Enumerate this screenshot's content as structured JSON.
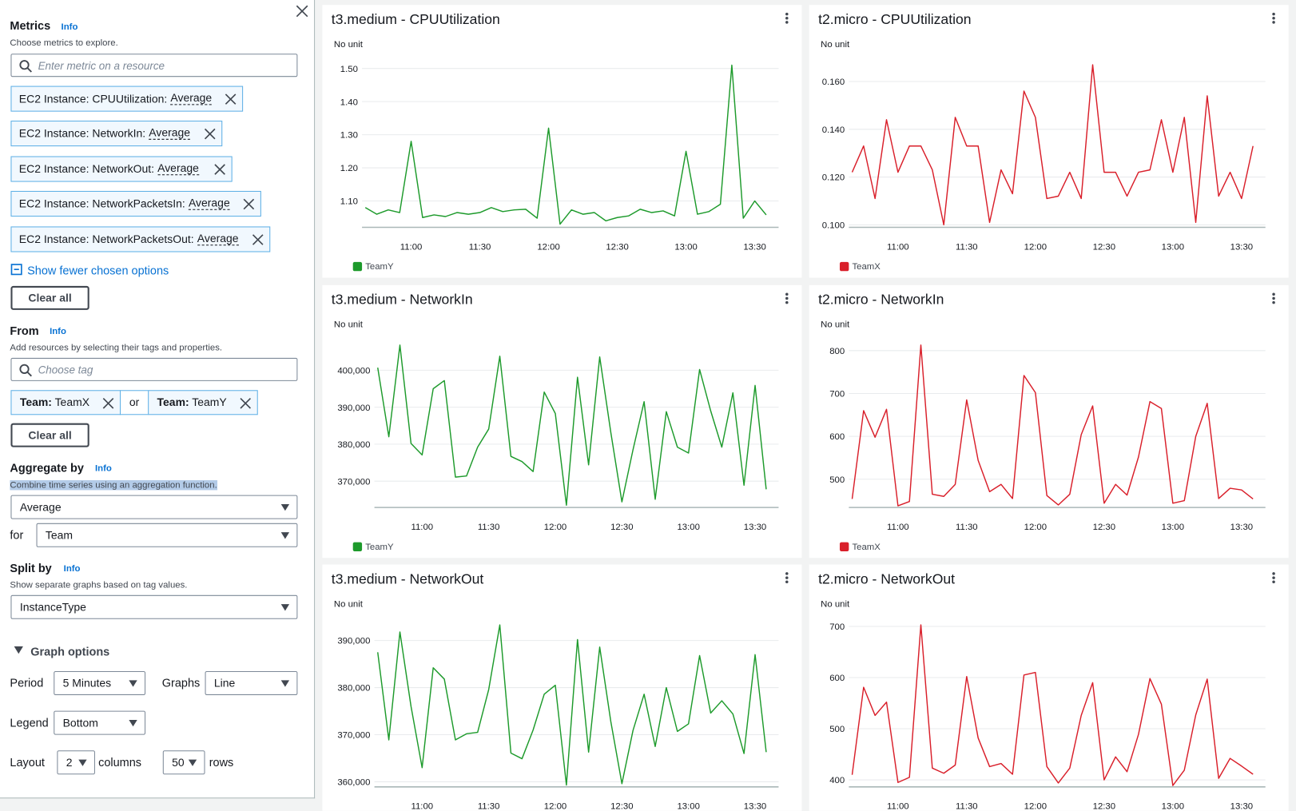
{
  "sidebar": {
    "metrics": {
      "title": "Metrics",
      "info": "Info",
      "description": "Choose metrics to explore.",
      "search_placeholder": "Enter metric on a resource",
      "chosen": [
        {
          "label": "EC2 Instance: CPUUtilization:",
          "stat": "Average"
        },
        {
          "label": "EC2 Instance: NetworkIn:",
          "stat": "Average"
        },
        {
          "label": "EC2 Instance: NetworkOut:",
          "stat": "Average"
        },
        {
          "label": "EC2 Instance: NetworkPacketsIn:",
          "stat": "Average"
        },
        {
          "label": "EC2 Instance: NetworkPacketsOut:",
          "stat": "Average"
        }
      ],
      "toggle": "Show fewer chosen options",
      "clear": "Clear all"
    },
    "from": {
      "title": "From",
      "info": "Info",
      "description": "Add resources by selecting their tags and properties.",
      "search_placeholder": "Choose tag",
      "tags": [
        {
          "key": "Team:",
          "value": "TeamX"
        },
        {
          "key": "Team:",
          "value": "TeamY"
        }
      ],
      "joiner": "or",
      "clear": "Clear all"
    },
    "aggregate": {
      "title": "Aggregate by",
      "info": "Info",
      "description": "Combine time series using an aggregation function.",
      "function": "Average",
      "for_label": "for",
      "for_value": "Team"
    },
    "split": {
      "title": "Split by",
      "info": "Info",
      "description": "Show separate graphs based on tag values.",
      "value": "InstanceType"
    },
    "graph_options": {
      "title": "Graph options",
      "period_label": "Period",
      "period": "5 Minutes",
      "graphs_label": "Graphs",
      "graphs": "Line",
      "legend_label": "Legend",
      "legend": "Bottom",
      "layout_label": "Layout",
      "columns": "2",
      "columns_label": "columns",
      "rows": "50",
      "rows_label": "rows"
    }
  },
  "chart_data": [
    {
      "type": "line",
      "title": "t3.medium - CPUUtilization",
      "unit": "No unit",
      "categories": [
        null,
        null,
        null,
        null,
        "11:00",
        null,
        null,
        null,
        null,
        null,
        "11:30",
        null,
        null,
        null,
        null,
        null,
        "12:00",
        null,
        null,
        null,
        null,
        null,
        "12:30",
        null,
        null,
        null,
        null,
        null,
        "13:00",
        null,
        null,
        null,
        null,
        null,
        "13:30",
        null
      ],
      "series": [
        {
          "name": "TeamY",
          "color": "#1d9a2b",
          "values": [
            1.08,
            1.06,
            1.073,
            1.065,
            1.28,
            1.05,
            1.058,
            1.053,
            1.065,
            1.06,
            1.065,
            1.08,
            1.068,
            1.073,
            1.075,
            1.048,
            1.32,
            1.03,
            1.073,
            1.06,
            1.065,
            1.04,
            1.05,
            1.055,
            1.075,
            1.065,
            1.07,
            1.055,
            1.25,
            1.06,
            1.068,
            1.09,
            1.51,
            1.048,
            1.1,
            1.058
          ]
        }
      ],
      "ylim": [
        1.023,
        1.542
      ],
      "yticks": [
        {
          "value": 1.1,
          "label": "1.10"
        },
        {
          "value": 1.2,
          "label": "1.20"
        },
        {
          "value": 1.3,
          "label": "1.30"
        },
        {
          "value": 1.4,
          "label": "1.40"
        },
        {
          "value": 1.5,
          "label": "1.50"
        }
      ],
      "grid": true
    },
    {
      "type": "line",
      "title": "t2.micro - CPUUtilization",
      "unit": "No unit",
      "categories": [
        null,
        null,
        null,
        null,
        "11:00",
        null,
        null,
        null,
        null,
        null,
        "11:30",
        null,
        null,
        null,
        null,
        null,
        "12:00",
        null,
        null,
        null,
        null,
        null,
        "12:30",
        null,
        null,
        null,
        null,
        null,
        "13:00",
        null,
        null,
        null,
        null,
        null,
        "13:30",
        null
      ],
      "series": [
        {
          "name": "TeamX",
          "color": "#d91f2a",
          "values": [
            0.122,
            0.133,
            0.111,
            0.144,
            0.122,
            0.133,
            0.133,
            0.123,
            0.1,
            0.145,
            0.133,
            0.133,
            0.101,
            0.123,
            0.113,
            0.156,
            0.145,
            0.111,
            0.112,
            0.122,
            0.111,
            0.167,
            0.122,
            0.122,
            0.112,
            0.122,
            0.123,
            0.144,
            0.122,
            0.145,
            0.101,
            0.154,
            0.112,
            0.122,
            0.111,
            0.133
          ]
        }
      ],
      "ylim": [
        0.0993,
        0.1713
      ],
      "yticks": [
        {
          "value": 0.1,
          "label": "0.100"
        },
        {
          "value": 0.12,
          "label": "0.120"
        },
        {
          "value": 0.14,
          "label": "0.140"
        },
        {
          "value": 0.16,
          "label": "0.160"
        }
      ],
      "grid": true
    },
    {
      "type": "line",
      "title": "t3.medium - NetworkIn",
      "unit": "No unit",
      "categories": [
        null,
        null,
        null,
        null,
        "11:00",
        null,
        null,
        null,
        null,
        null,
        "11:30",
        null,
        null,
        null,
        null,
        null,
        "12:00",
        null,
        null,
        null,
        null,
        null,
        "12:30",
        null,
        null,
        null,
        null,
        null,
        "13:00",
        null,
        null,
        null,
        null,
        null,
        "13:30",
        null
      ],
      "series": [
        {
          "name": "TeamY",
          "color": "#1d9a2b",
          "values": [
            400700,
            382000,
            406800,
            380200,
            377100,
            395000,
            397200,
            371100,
            371400,
            379200,
            384100,
            403800,
            376700,
            375300,
            372600,
            394100,
            388300,
            363500,
            398100,
            374400,
            403600,
            383200,
            364400,
            378500,
            391500,
            365100,
            388800,
            379200,
            377600,
            400200,
            389000,
            379200,
            393900,
            368900,
            395900,
            367800
          ]
        }
      ],
      "ylim": [
        363100,
        409600
      ],
      "yticks": [
        {
          "value": 370000,
          "label": "370,000"
        },
        {
          "value": 380000,
          "label": "380,000"
        },
        {
          "value": 390000,
          "label": "390,000"
        },
        {
          "value": 400000,
          "label": "400,000"
        }
      ],
      "grid": true
    },
    {
      "type": "line",
      "title": "t2.micro - NetworkIn",
      "unit": "No unit",
      "categories": [
        null,
        null,
        null,
        null,
        "11:00",
        null,
        null,
        null,
        null,
        null,
        "11:30",
        null,
        null,
        null,
        null,
        null,
        "12:00",
        null,
        null,
        null,
        null,
        null,
        "12:30",
        null,
        null,
        null,
        null,
        null,
        "13:00",
        null,
        null,
        null,
        null,
        null,
        "13:30",
        null
      ],
      "series": [
        {
          "name": "TeamX",
          "color": "#d91f2a",
          "values": [
            454,
            660,
            598,
            663,
            438,
            448,
            813,
            465,
            460,
            488,
            685,
            544,
            471,
            488,
            455,
            742,
            702,
            462,
            440,
            465,
            604,
            671,
            444,
            488,
            463,
            552,
            681,
            665,
            444,
            450,
            600,
            677,
            455,
            479,
            475,
            454
          ]
        }
      ],
      "ylim": [
        436,
        837
      ],
      "yticks": [
        500,
        600,
        700,
        800
      ],
      "grid": true
    },
    {
      "type": "line",
      "title": "t3.medium - NetworkOut",
      "unit": "No unit",
      "categories": [
        null,
        null,
        null,
        null,
        "11:00",
        null,
        null,
        null,
        null,
        null,
        "11:30",
        null,
        null,
        null,
        null,
        null,
        "12:00",
        null,
        null,
        null,
        null,
        null,
        "12:30",
        null,
        null,
        null,
        null,
        null,
        "13:00",
        null,
        null,
        null,
        null,
        null,
        "13:30",
        null
      ],
      "series": [
        {
          "color": "#1d9a2b",
          "values": [
            387500,
            368900,
            391800,
            376000,
            363000,
            384200,
            381800,
            368900,
            370200,
            370500,
            379600,
            393300,
            366100,
            364900,
            371000,
            378600,
            380500,
            359300,
            390200,
            366300,
            388600,
            372800,
            359600,
            370900,
            378600,
            367500,
            380000,
            370700,
            372300,
            386800,
            374600,
            377200,
            374400,
            366000,
            387000,
            366300
          ]
        }
      ],
      "ylim": [
        359100,
        395600
      ],
      "yticks": [
        {
          "value": 360000,
          "label": "360,000"
        },
        {
          "value": 370000,
          "label": "370,000"
        },
        {
          "value": 380000,
          "label": "380,000"
        },
        {
          "value": 390000,
          "label": "390,000"
        }
      ],
      "grid": true
    },
    {
      "type": "line",
      "title": "t2.micro - NetworkOut",
      "unit": "No unit",
      "categories": [
        null,
        null,
        null,
        null,
        "11:00",
        null,
        null,
        null,
        null,
        null,
        "11:30",
        null,
        null,
        null,
        null,
        null,
        "12:00",
        null,
        null,
        null,
        null,
        null,
        "12:30",
        null,
        null,
        null,
        null,
        null,
        "13:00",
        null,
        null,
        null,
        null,
        null,
        "13:30",
        null
      ],
      "series": [
        {
          "color": "#d91f2a",
          "values": [
            410,
            581,
            526,
            552,
            395,
            405,
            703,
            423,
            413,
            429,
            602,
            482,
            426,
            432,
            411,
            605,
            610,
            426,
            394,
            423,
            526,
            590,
            400,
            445,
            416,
            489,
            598,
            548,
            389,
            419,
            527,
            597,
            403,
            442,
            427,
            411
          ]
        }
      ],
      "ylim": [
        388,
        724
      ],
      "yticks": [
        400,
        500,
        600,
        700
      ],
      "grid": true
    }
  ]
}
